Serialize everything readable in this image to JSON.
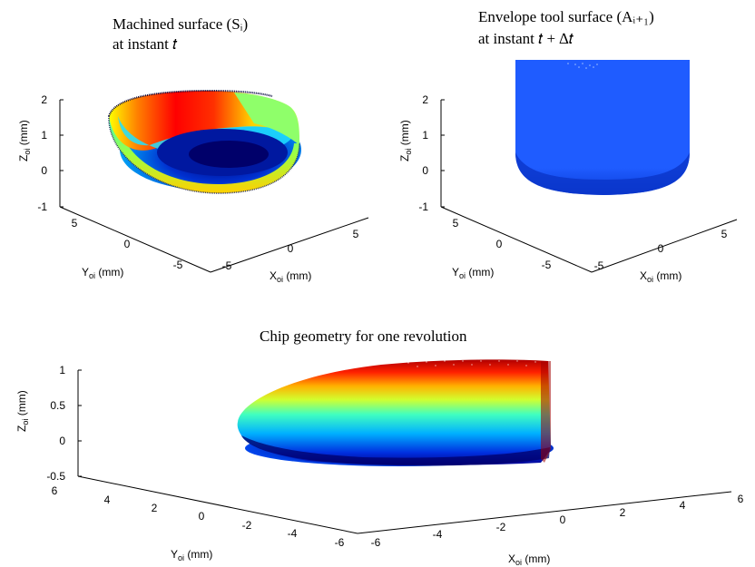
{
  "chart_data": [
    {
      "type": "surface3d",
      "title_line1": "Machined  surface  (Sᵢ)",
      "title_line2": "at instant 𝑡",
      "zlabel": "Z",
      "zlabel_sub": "oi",
      "zlabel_unit": "(mm)",
      "ylabel": "Y",
      "ylabel_sub": "oi",
      "ylabel_unit": "(mm)",
      "xlabel": "X",
      "xlabel_sub": "oi",
      "xlabel_unit": "(mm)",
      "zticks": [
        "2",
        "1",
        "0",
        "-1"
      ],
      "yticks": [
        "5",
        "0",
        "-5"
      ],
      "xticks": [
        "-5",
        "0",
        "5"
      ],
      "zlim": [
        -1,
        2
      ],
      "xlim": [
        -5,
        5
      ],
      "ylim": [
        -5,
        5
      ],
      "colormap": "jet"
    },
    {
      "type": "surface3d",
      "title_line1": "Envelope tool surface (Aᵢ₊₁)",
      "title_line2": "at instant 𝑡 + ∆𝑡",
      "zlabel": "Z",
      "zlabel_sub": "oi",
      "zlabel_unit": "(mm)",
      "ylabel": "Y",
      "ylabel_sub": "oi",
      "ylabel_unit": "(mm)",
      "xlabel": "X",
      "xlabel_sub": "oi",
      "xlabel_unit": "(mm)",
      "zticks": [
        "2",
        "1",
        "0",
        "-1"
      ],
      "yticks": [
        "5",
        "0",
        "-5"
      ],
      "xticks": [
        "-5",
        "0",
        "5"
      ],
      "zlim": [
        -1,
        2
      ],
      "xlim": [
        -5,
        5
      ],
      "ylim": [
        -5,
        5
      ],
      "colormap": "jet"
    },
    {
      "type": "surface3d",
      "title": "Chip geometry for one revolution",
      "zlabel": "Z",
      "zlabel_sub": "oi",
      "zlabel_unit": "(mm)",
      "ylabel": "Y",
      "ylabel_sub": "oi",
      "ylabel_unit": "(mm)",
      "xlabel": "X",
      "xlabel_sub": "oi",
      "xlabel_unit": "(mm)",
      "zticks": [
        "1",
        "0.5",
        "0",
        "-0.5"
      ],
      "yticks": [
        "6",
        "4",
        "2",
        "0",
        "-2",
        "-4",
        "-6"
      ],
      "xticks": [
        "-6",
        "-4",
        "-2",
        "0",
        "2",
        "4",
        "6"
      ],
      "zlim": [
        -0.5,
        1
      ],
      "xlim": [
        -6,
        6
      ],
      "ylim": [
        -6,
        6
      ],
      "colormap": "jet"
    }
  ],
  "colors": {
    "jet_low": "#00008f",
    "jet_mid": "#00ffff",
    "jet_yellow": "#ffff00",
    "jet_high": "#800000",
    "tool_blue": "#1f5cff",
    "chip_face_green": "#8fff6a"
  }
}
